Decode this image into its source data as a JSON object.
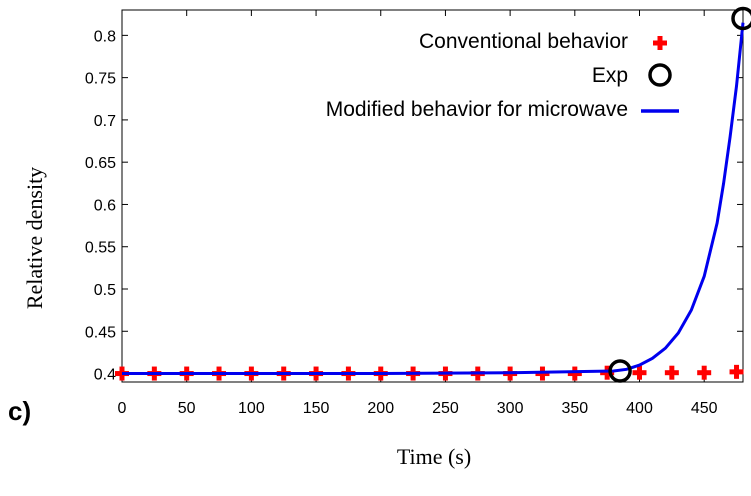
{
  "chart_data": {
    "type": "line",
    "panel_label": "c)",
    "xlabel": "Time (s)",
    "ylabel": "Relative density",
    "xlim": [
      0,
      480
    ],
    "ylim": [
      0.39,
      0.83
    ],
    "xticks": [
      0,
      50,
      100,
      150,
      200,
      250,
      300,
      350,
      400,
      450
    ],
    "yticks": [
      0.4,
      0.45,
      0.5,
      0.55,
      0.6,
      0.65,
      0.7,
      0.75,
      0.8
    ],
    "ytick_labels": [
      "0.4",
      "0.45",
      "0.5",
      "0.55",
      "0.6",
      "0.65",
      "0.7",
      "0.75",
      "0.8"
    ],
    "grid": false,
    "legend_position": "top-right",
    "series": [
      {
        "name": "Conventional behavior",
        "style": "plus-markers",
        "color": "#ff0000",
        "x": [
          0,
          25,
          50,
          75,
          100,
          125,
          150,
          175,
          200,
          225,
          250,
          275,
          300,
          325,
          350,
          375,
          400,
          425,
          450,
          475
        ],
        "y": [
          0.4,
          0.4,
          0.4,
          0.4,
          0.4,
          0.4,
          0.4,
          0.4,
          0.4,
          0.4,
          0.4,
          0.4,
          0.4,
          0.4,
          0.4,
          0.401,
          0.401,
          0.401,
          0.401,
          0.402
        ]
      },
      {
        "name": "Exp",
        "style": "open-circles",
        "color": "#000000",
        "x": [
          385,
          480
        ],
        "y": [
          0.403,
          0.82
        ]
      },
      {
        "name": "Modified behavior for microwave",
        "style": "line",
        "color": "#0000ee",
        "x": [
          0,
          100,
          200,
          300,
          380,
          390,
          400,
          410,
          420,
          430,
          440,
          450,
          460,
          465,
          470,
          475,
          480
        ],
        "y": [
          0.4,
          0.4,
          0.4,
          0.401,
          0.403,
          0.405,
          0.41,
          0.418,
          0.43,
          0.448,
          0.475,
          0.515,
          0.578,
          0.625,
          0.68,
          0.74,
          0.815
        ]
      }
    ]
  }
}
